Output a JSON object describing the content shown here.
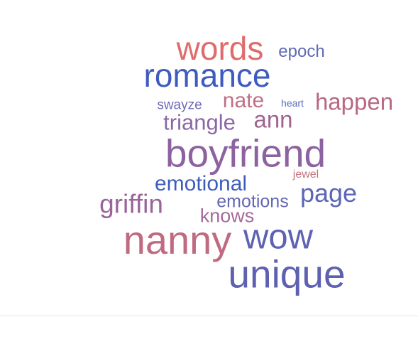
{
  "wordcloud": {
    "words": [
      {
        "text": "words",
        "color": "#e06b6b"
      },
      {
        "text": "epoch",
        "color": "#5f6bb5"
      },
      {
        "text": "romance",
        "color": "#3f5bc0"
      },
      {
        "text": "swayze",
        "color": "#6e6bb8"
      },
      {
        "text": "nate",
        "color": "#c06f87"
      },
      {
        "text": "heart",
        "color": "#5b6ac0"
      },
      {
        "text": "happen",
        "color": "#b86884"
      },
      {
        "text": "triangle",
        "color": "#8b68a3"
      },
      {
        "text": "ann",
        "color": "#a0648f"
      },
      {
        "text": "boyfriend",
        "color": "#8c62a0"
      },
      {
        "text": "emotional",
        "color": "#3d5dbd"
      },
      {
        "text": "jewel",
        "color": "#c2737f"
      },
      {
        "text": "griffin",
        "color": "#9a6499"
      },
      {
        "text": "emotions",
        "color": "#6367b4"
      },
      {
        "text": "page",
        "color": "#5c66b4"
      },
      {
        "text": "knows",
        "color": "#a46a9c"
      },
      {
        "text": "nanny",
        "color": "#c06a80"
      },
      {
        "text": "wow",
        "color": "#5d62b2"
      },
      {
        "text": "unique",
        "color": "#5e60b0"
      }
    ]
  }
}
